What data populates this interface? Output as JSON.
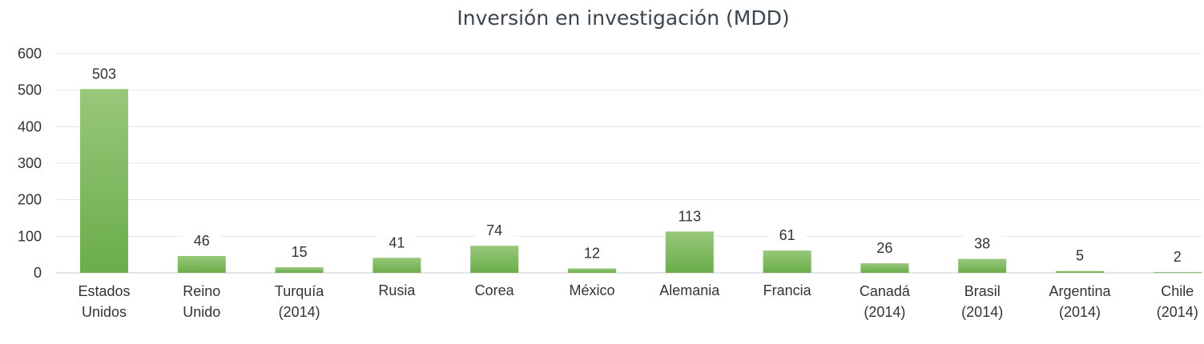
{
  "chart_data": {
    "type": "bar",
    "title": "Inversión en investigación (MDD)",
    "xlabel": "",
    "ylabel": "",
    "categories": [
      [
        "Estados",
        "Unidos"
      ],
      [
        "Reino",
        "Unido"
      ],
      [
        "Turquía",
        "(2014)"
      ],
      [
        "Rusia"
      ],
      [
        "Corea"
      ],
      [
        "México"
      ],
      [
        "Alemania"
      ],
      [
        "Francia"
      ],
      [
        "Canadá",
        "(2014)"
      ],
      [
        "Brasil",
        "(2014)"
      ],
      [
        "Argentina",
        "(2014)"
      ],
      [
        "Chile",
        "(2014)"
      ]
    ],
    "values": [
      503,
      46,
      15,
      41,
      74,
      12,
      113,
      61,
      26,
      38,
      5,
      2
    ],
    "ylim": [
      0,
      600
    ],
    "yticks": [
      0,
      100,
      200,
      300,
      400,
      500,
      600
    ],
    "grid": true,
    "legend": "none",
    "colors": {
      "bar_top": "#98c87a",
      "bar_bottom": "#6aad4a",
      "text": "#333333",
      "title": "#3a4550",
      "grid": "#e6e6e6"
    }
  }
}
